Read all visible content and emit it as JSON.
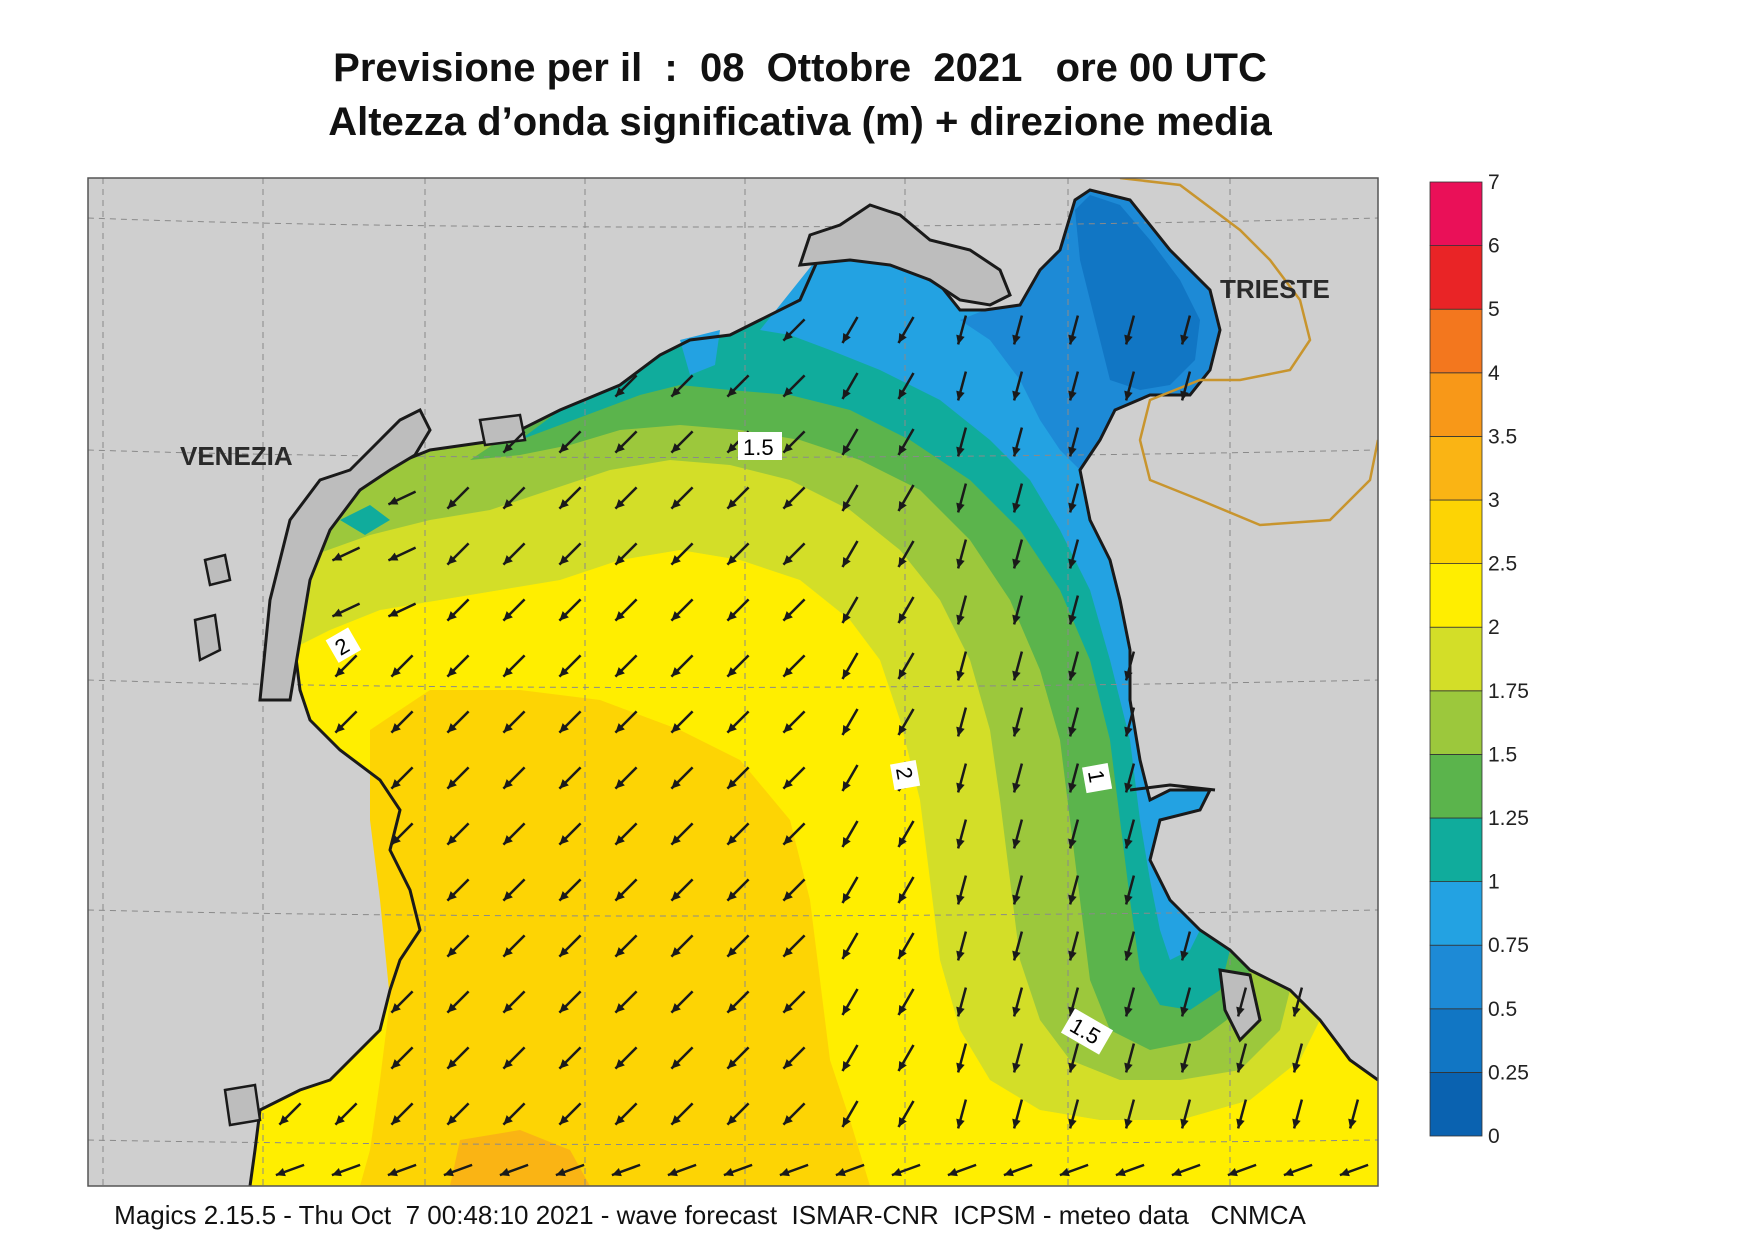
{
  "title": {
    "line1": "Previsione per il  :  08  Ottobre  2021   ore 00 UTC",
    "line2": "Altezza d’onda significativa (m) + direzione media"
  },
  "cities": {
    "venezia": "VENEZIA",
    "trieste": "TRIESTE"
  },
  "contour_labels": {
    "c1_5_top": "1.5",
    "c2_left": "2",
    "c2_center": "2",
    "c1_right": "1",
    "c1_5_bottom": "1.5"
  },
  "legend": {
    "levels": [
      "0",
      "0.25",
      "0.5",
      "0.75",
      "1",
      "1.25",
      "1.5",
      "1.75",
      "2",
      "2.5",
      "3",
      "3.5",
      "4",
      "5",
      "6",
      "7"
    ],
    "colors": [
      "#0a62b0",
      "#1176c4",
      "#1d8ad6",
      "#23a2e2",
      "#10ac9c",
      "#5bb44c",
      "#9cc83c",
      "#d3de28",
      "#ffee00",
      "#fdd404",
      "#fab414",
      "#f89818",
      "#f3771e",
      "#e92426",
      "#ea1058"
    ]
  },
  "field_colors": {
    "land": "#cfcfcf",
    "coast": "#1a1a1a",
    "border": "#c8952e",
    "grid": "#8a8a8a",
    "arrow": "#1a1a1a"
  },
  "wave_direction_note": "",
  "footer": "Magics 2.15.5 - Thu Oct  7 00:48:10 2021 - wave forecast  ISMAR-CNR  ICPSM - meteo data   CNMCA"
}
